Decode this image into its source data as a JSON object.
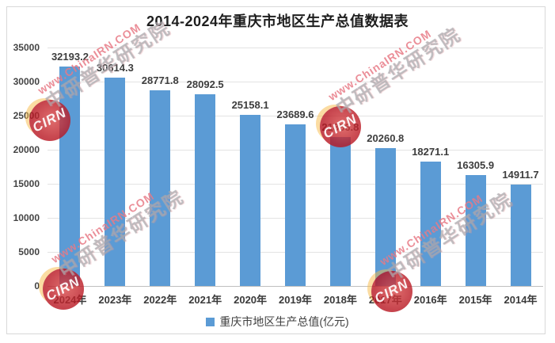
{
  "title": "2014-2024年重庆市地区生产总值数据表",
  "watermark": {
    "badge": "CIRN",
    "url": "www.ChinaIRN.COM",
    "cn": "中研普华研究院"
  },
  "colors": {
    "bar": "#5B9BD5",
    "title": "#1E1E1E",
    "data_label": "#3D3D3D",
    "grid": "#E3E3E3",
    "axis": "#BFBFBF",
    "watermark_red": "#B81621",
    "watermark_pink": "#E77A86",
    "watermark_gray": "#A8A8AD"
  },
  "chart_data": {
    "type": "bar",
    "title": "2014-2024年重庆市地区生产总值数据表",
    "series_name": "重庆市地区生产总值(亿元)",
    "categories": [
      "2024年",
      "2023年",
      "2022年",
      "2021年",
      "2020年",
      "2019年",
      "2018年",
      "2017年",
      "2016年",
      "2015年",
      "2014年"
    ],
    "values": [
      32193.2,
      30614.3,
      28771.8,
      28092.5,
      25158.1,
      23689.6,
      21866.8,
      20260.8,
      18271.1,
      16305.9,
      14911.7
    ],
    "data_labels": [
      "32193.2",
      "30614.3",
      "28771.8",
      "28092.5",
      "25158.1",
      "23689.6",
      "21866.8",
      "20260.8",
      "18271.1",
      "16305.9",
      "14911.7"
    ],
    "xlabel": "",
    "ylabel": "",
    "ylim": [
      0,
      35000
    ],
    "yticks": [
      0,
      5000,
      10000,
      15000,
      20000,
      25000,
      30000,
      35000
    ],
    "grid": true,
    "legend_position": "bottom"
  }
}
